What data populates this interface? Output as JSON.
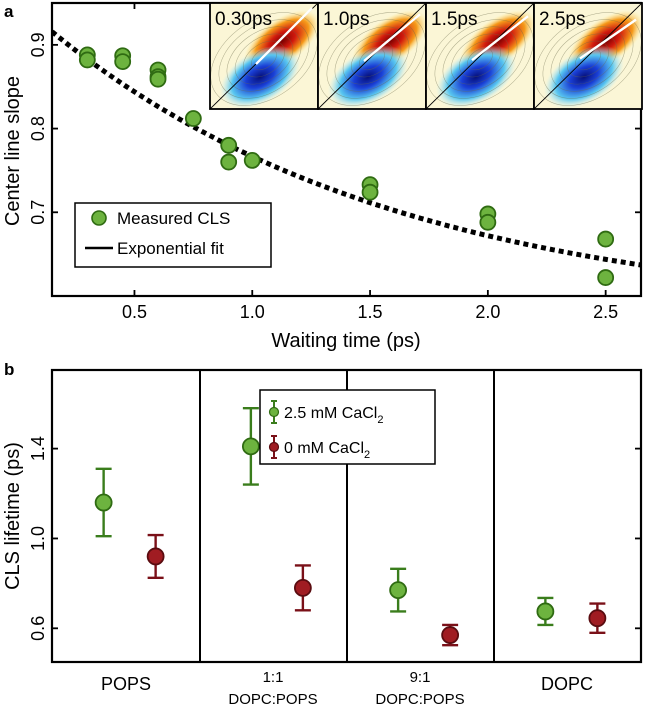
{
  "panel_labels": {
    "a": "a",
    "b": "b"
  },
  "colors": {
    "green": "#6db33f",
    "green_edge": "#2f6b12",
    "red": "#a01c22",
    "red_edge": "#5a0c10",
    "fit": "#000000"
  },
  "chart_data": [
    {
      "id": "a",
      "type": "scatter",
      "title": "",
      "xlabel": "Waiting time (ps)",
      "ylabel": "Center line slope",
      "xlim": [
        0.15,
        2.65
      ],
      "ylim": [
        0.6,
        0.95
      ],
      "xticks": [
        0.5,
        1.0,
        1.5,
        2.0,
        2.5
      ],
      "xtick_labels": [
        "0.5",
        "1.0",
        "1.5",
        "2.0",
        "2.5"
      ],
      "yticks": [
        0.7,
        0.8,
        0.9
      ],
      "ytick_labels": [
        "0.7",
        "0.8",
        "0.9"
      ],
      "series": [
        {
          "name": "Measured CLS",
          "x": [
            0.3,
            0.3,
            0.45,
            0.45,
            0.6,
            0.6,
            0.6,
            0.75,
            0.9,
            0.9,
            1.0,
            1.5,
            1.5,
            2.0,
            2.0,
            2.5,
            2.5
          ],
          "y": [
            0.888,
            0.882,
            0.887,
            0.88,
            0.87,
            0.862,
            0.859,
            0.812,
            0.78,
            0.76,
            0.762,
            0.733,
            0.724,
            0.698,
            0.688,
            0.668,
            0.622
          ]
        }
      ],
      "fit": {
        "name": "Exponential fit",
        "model": "A*exp(-t/tau)+C",
        "A": 0.379,
        "tau": 1.49,
        "C": 0.573,
        "x_range": [
          0.15,
          2.65
        ]
      },
      "legend": {
        "placement": "lower-left",
        "entries": [
          "Measured CLS",
          "Exponential fit"
        ]
      },
      "inset_labels": [
        "0.30ps",
        "1.0ps",
        "1.5ps",
        "2.5ps"
      ]
    },
    {
      "id": "b",
      "type": "scatter",
      "title": "",
      "xlabel": "",
      "ylabel": "CLS lifetime (ps)",
      "ylim": [
        0.45,
        1.75
      ],
      "yticks": [
        0.6,
        1.0,
        1.4
      ],
      "ytick_labels": [
        "0.6",
        "1.0",
        "1.4"
      ],
      "categories": [
        "POPS",
        "1:1 DOPC:POPS",
        "9:1 DOPC:POPS",
        "DOPC"
      ],
      "category_lines": [
        [
          "POPS"
        ],
        [
          "1:1",
          "DOPC:POPS"
        ],
        [
          "9:1",
          "DOPC:POPS"
        ],
        [
          "DOPC"
        ]
      ],
      "series": [
        {
          "name": "2.5 mM CaCl2",
          "label_main": "2.5 mM CaCl",
          "label_sub": "2",
          "values": [
            1.16,
            1.41,
            0.77,
            0.675
          ],
          "errors": [
            0.15,
            0.17,
            0.095,
            0.06
          ]
        },
        {
          "name": "0 mM CaCl2",
          "label_main": "0 mM CaCl",
          "label_sub": "2",
          "values": [
            0.92,
            0.78,
            0.57,
            0.645
          ],
          "errors": [
            0.095,
            0.1,
            0.045,
            0.065
          ]
        }
      ],
      "legend": {
        "placement": "top-center"
      }
    }
  ]
}
